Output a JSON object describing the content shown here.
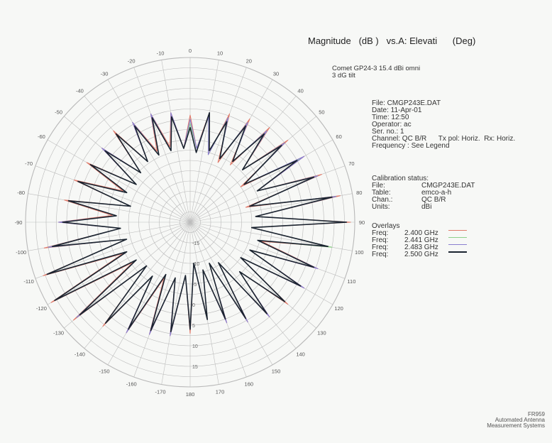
{
  "title": {
    "magnitude": "Magnitude",
    "mag_unit": "(dB )",
    "vs": "vs.A: Elevati",
    "deg_unit": "(Deg)"
  },
  "subtitle": [
    "Comet GP24-3 15.4 dBi omni",
    "3 dG tilt"
  ],
  "info": [
    "File: CMGP243E.DAT",
    "Date: 11-Apr-01",
    "Time:  12:50",
    "Operator: ac",
    "Ser. no.: 1",
    "Channel: QC B/R      Tx pol: Horiz.  Rx: Horiz.",
    "Frequency : See Legend"
  ],
  "calibration": {
    "heading": "Calibration status:",
    "rows": [
      {
        "key": "File:",
        "value": "CMGP243E.DAT"
      },
      {
        "key": "Table:",
        "value": "emco-a-h"
      },
      {
        "key": "Chan.:",
        "value": "QC B/R"
      },
      {
        "key": "Units:",
        "value": "dBi"
      }
    ]
  },
  "overlays": {
    "heading": "Overlays",
    "rows": [
      {
        "key": "Freq:",
        "value": "2.400 GHz",
        "color": "#e07a6a"
      },
      {
        "key": "Freq:",
        "value": "2.441 GHz",
        "color": "#8fd08a"
      },
      {
        "key": "Freq:",
        "value": "2.483 GHz",
        "color": "#8a7fd0"
      },
      {
        "key": "Freq:",
        "value": "2.500 GHz",
        "color": "#1b2430"
      }
    ]
  },
  "footer": [
    "FR959",
    "Automated Antenna",
    "Measurement Systems"
  ],
  "chart_data": {
    "type": "polar",
    "angular_axis": {
      "step_deg": 10,
      "labels": [
        "0",
        "10",
        "20",
        "30",
        "40",
        "50",
        "60",
        "70",
        "80",
        "90",
        "100",
        "110",
        "120",
        "130",
        "140",
        "150",
        "160",
        "170",
        "180",
        "-170",
        "-160",
        "-150",
        "-140",
        "-130",
        "-120",
        "-110",
        "-100",
        "-90",
        "-80",
        "-70",
        "-60",
        "-50",
        "-40",
        "-30",
        "-20",
        "-10"
      ]
    },
    "radial_axis": {
      "range": [
        -20,
        20
      ],
      "tick_labels": [
        "-15",
        "-10",
        "-5",
        "0",
        "5",
        "10",
        "15"
      ]
    },
    "series": [
      {
        "name": "2.400 GHz",
        "color": "#e07a6a",
        "width": 1.1,
        "values": [
          6,
          -2,
          7,
          -3,
          8,
          -4,
          9,
          -3,
          10,
          -2,
          11,
          -5,
          12,
          -2,
          14,
          -6,
          17,
          -4,
          19,
          -5,
          14,
          -2,
          13,
          -4,
          12,
          -5,
          11,
          -3,
          10,
          -8,
          8,
          -9,
          6,
          -8,
          4,
          -10,
          7,
          -7,
          8,
          -6,
          9,
          -5,
          11,
          -4,
          13,
          -5,
          17,
          -3,
          19,
          -2,
          18,
          -4,
          16,
          -3,
          12,
          -1,
          11,
          -5,
          10,
          -2,
          9,
          -4,
          8,
          -3,
          9,
          -2,
          8,
          -1,
          8,
          -1,
          7,
          -2
        ]
      },
      {
        "name": "2.441 GHz",
        "color": "#8fd08a",
        "width": 1.1,
        "values": [
          4,
          -2,
          6,
          -3,
          7,
          -3,
          8,
          -2,
          9,
          -2,
          10,
          -4,
          11,
          -2,
          13,
          -5,
          16,
          -4,
          18,
          -5,
          15,
          -3,
          12,
          -4,
          11,
          -5,
          10,
          -3,
          9,
          -8,
          7,
          -9,
          5,
          -8,
          4,
          -10,
          6,
          -7,
          7,
          -6,
          8,
          -6,
          10,
          -4,
          12,
          -5,
          16,
          -4,
          18,
          -3,
          17,
          -4,
          15,
          -3,
          11,
          -2,
          10,
          -5,
          9,
          -3,
          8,
          -4,
          7,
          -3,
          8,
          -2,
          7,
          -2,
          7,
          -2,
          6,
          -2
        ]
      },
      {
        "name": "2.483 GHz",
        "color": "#8a7fd0",
        "width": 1.1,
        "values": [
          5,
          -2,
          6,
          -3,
          7,
          -3,
          8,
          -2,
          9,
          -2,
          10,
          -4,
          12,
          -2,
          13,
          -5,
          16,
          -4,
          18,
          -5,
          14,
          -3,
          13,
          -4,
          12,
          -5,
          10,
          -3,
          10,
          -8,
          8,
          -9,
          6,
          -8,
          4,
          -10,
          6,
          -7,
          8,
          -6,
          9,
          -6,
          11,
          -4,
          12,
          -5,
          16,
          -4,
          18,
          -3,
          17,
          -4,
          15,
          -3,
          12,
          -2,
          10,
          -5,
          9,
          -3,
          8,
          -4,
          8,
          -3,
          8,
          -2,
          8,
          -2,
          8,
          -2,
          7,
          -2
        ]
      },
      {
        "name": "2.500 GHz",
        "color": "#1b2430",
        "width": 1.6,
        "values": [
          3,
          -3,
          7,
          -2,
          6,
          -3,
          7,
          -2,
          8,
          -2,
          9,
          -4,
          10,
          -2,
          12,
          -5,
          15,
          -4,
          18,
          -5,
          14,
          -3,
          12,
          -4,
          11,
          -5,
          10,
          -3,
          9,
          -8,
          7,
          -9,
          5,
          -8,
          4,
          -10,
          6,
          -7,
          7,
          -6,
          8,
          -6,
          10,
          -4,
          12,
          -5,
          15,
          -4,
          18,
          -3,
          17,
          -4,
          14,
          -3,
          11,
          -2,
          10,
          -5,
          9,
          -3,
          8,
          -4,
          7,
          -3,
          8,
          -2,
          7,
          -2,
          7,
          -2,
          6,
          -2
        ]
      }
    ]
  }
}
